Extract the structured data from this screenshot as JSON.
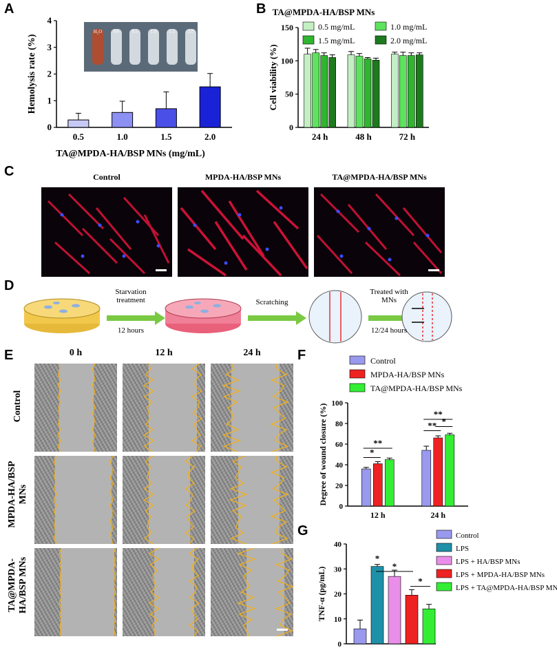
{
  "panel_labels": {
    "a": "A",
    "b": "B",
    "c": "C",
    "d": "D",
    "e": "E",
    "f": "F",
    "g": "G"
  },
  "tube_labels": [
    "H₂O",
    "NS",
    "0.5",
    "1.0",
    "1.5",
    "2.0"
  ],
  "chart_data": [
    {
      "id": "A",
      "type": "bar",
      "categories": [
        "0.5",
        "1.0",
        "1.5",
        "2.0"
      ],
      "values": [
        0.28,
        0.56,
        0.7,
        1.52
      ],
      "errors": [
        0.25,
        0.42,
        0.63,
        0.5
      ],
      "xlabel": "TA@MPDA-HA/BSP MNs (mg/mL)",
      "ylabel": "Hemolysis rate (%)",
      "ylim": [
        0,
        4
      ],
      "yticks": [
        "0",
        "1",
        "2",
        "3",
        "4"
      ],
      "colors": [
        "#c7c9f5",
        "#8c90f2",
        "#4a4fe8",
        "#1a22d8"
      ]
    },
    {
      "id": "B",
      "type": "bar",
      "title": "TA@MPDA-HA/BSP MNs",
      "categories": [
        "24 h",
        "48 h",
        "72 h"
      ],
      "series": [
        {
          "name": "0.5 mg/mL",
          "color": "#c3efc3",
          "values": [
            110,
            109,
            110
          ],
          "errors": [
            9,
            5,
            3
          ]
        },
        {
          "name": "1.0 mg/mL",
          "color": "#5ee35e",
          "values": [
            112,
            107,
            108
          ],
          "errors": [
            5,
            4,
            5
          ]
        },
        {
          "name": "1.5 mg/mL",
          "color": "#2fb52f",
          "values": [
            108,
            103,
            108
          ],
          "errors": [
            4,
            2,
            4
          ]
        },
        {
          "name": "2.0 mg/mL",
          "color": "#1d7a1d",
          "values": [
            105,
            101,
            109
          ],
          "errors": [
            4,
            3,
            3
          ]
        }
      ],
      "ylabel": "Cell viability (%)",
      "ylim": [
        0,
        150
      ],
      "yticks": [
        "0",
        "50",
        "100",
        "150"
      ]
    },
    {
      "id": "F",
      "type": "bar",
      "categories": [
        "12 h",
        "24 h"
      ],
      "series": [
        {
          "name": "Control",
          "color": "#9999ee",
          "values": [
            36,
            54
          ],
          "errors": [
            1.5,
            4
          ]
        },
        {
          "name": "MPDA-HA/BSP MNs",
          "color": "#ee2222",
          "values": [
            41,
            66
          ],
          "errors": [
            2,
            2
          ]
        },
        {
          "name": "TA@MPDA-HA/BSP MNs",
          "color": "#33ee33",
          "values": [
            45,
            69
          ],
          "errors": [
            1.5,
            1.5
          ]
        }
      ],
      "ylabel": "Degree of wound closure (%)",
      "ylim": [
        0,
        100
      ],
      "yticks": [
        "0",
        "20",
        "40",
        "60",
        "80",
        "100"
      ],
      "annotations": [
        "*",
        "**",
        "**",
        "**",
        "*"
      ]
    },
    {
      "id": "G",
      "type": "bar",
      "series": [
        {
          "name": "Control",
          "color": "#9999ee",
          "value": 6,
          "error": 3.5
        },
        {
          "name": "LPS",
          "color": "#1e90a8",
          "value": 31,
          "error": 0.8
        },
        {
          "name": "LPS + HA/BSP MNs",
          "color": "#e98ee9",
          "value": 27,
          "error": 2.5
        },
        {
          "name": "LPS + MPDA-HA/BSP MNs",
          "color": "#ee2222",
          "value": 19.5,
          "error": 2.2
        },
        {
          "name": "LPS + TA@MPDA-HA/BSP MNs",
          "color": "#33ee33",
          "value": 14,
          "error": 1.8
        }
      ],
      "ylabel": "TNF-α (pg/mL)",
      "ylim": [
        0,
        40
      ],
      "yticks": [
        "0",
        "10",
        "20",
        "30",
        "40"
      ],
      "annotations": [
        "*",
        "*",
        "*"
      ]
    }
  ],
  "panel_c": {
    "captions": [
      "Control",
      "MPDA-HA/BSP MNs",
      "TA@MPDA-HA/BSP MNs"
    ]
  },
  "panel_d": {
    "step1": "Starvation treatment",
    "step1_time": "12 hours",
    "step2": "Scratching",
    "step3": "Treated with MNs",
    "step3_time": "12/24 hours"
  },
  "panel_e": {
    "columns": [
      "0 h",
      "12 h",
      "24 h"
    ],
    "rows": [
      "Control",
      "MPDA-HA/BSP MNs",
      "TA@MPDA-HA/BSP MNs"
    ],
    "row_lines": [
      [
        "Control"
      ],
      [
        "MPDA-HA/BSP",
        "MNs"
      ],
      [
        "TA@MPDA-",
        "HA/BSP MNs"
      ]
    ]
  }
}
